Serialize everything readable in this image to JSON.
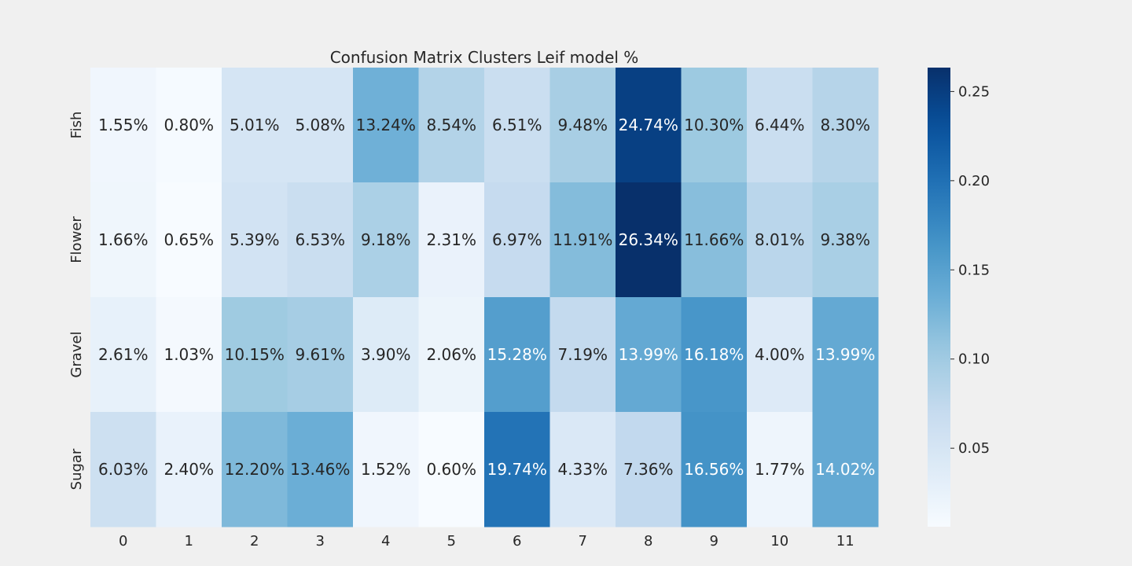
{
  "chart_data": {
    "type": "heatmap",
    "title": "Confusion Matrix Clusters Leif model %",
    "xlabel": "",
    "ylabel": "",
    "x_categories": [
      "0",
      "1",
      "2",
      "3",
      "4",
      "5",
      "6",
      "7",
      "8",
      "9",
      "10",
      "11"
    ],
    "y_categories": [
      "Fish",
      "Flower",
      "Gravel",
      "Sugar"
    ],
    "values": [
      [
        0.0155,
        0.008,
        0.0501,
        0.0508,
        0.1324,
        0.0854,
        0.0651,
        0.0948,
        0.2474,
        0.103,
        0.0644,
        0.083
      ],
      [
        0.0166,
        0.0065,
        0.0539,
        0.0653,
        0.0918,
        0.0231,
        0.0697,
        0.1191,
        0.2634,
        0.1166,
        0.0801,
        0.0938
      ],
      [
        0.0261,
        0.0103,
        0.1015,
        0.0961,
        0.039,
        0.0206,
        0.1528,
        0.0719,
        0.1399,
        0.1618,
        0.04,
        0.1399
      ],
      [
        0.0603,
        0.024,
        0.122,
        0.1346,
        0.0152,
        0.006,
        0.1974,
        0.0433,
        0.0736,
        0.1656,
        0.0177,
        0.1402
      ]
    ],
    "annotations": [
      [
        "1.55%",
        "0.80%",
        "5.01%",
        "5.08%",
        "13.24%",
        "8.54%",
        "6.51%",
        "9.48%",
        "24.74%",
        "10.30%",
        "6.44%",
        "8.30%"
      ],
      [
        "1.66%",
        "0.65%",
        "5.39%",
        "6.53%",
        "9.18%",
        "2.31%",
        "6.97%",
        "11.91%",
        "26.34%",
        "11.66%",
        "8.01%",
        "9.38%"
      ],
      [
        "2.61%",
        "1.03%",
        "10.15%",
        "9.61%",
        "3.90%",
        "2.06%",
        "15.28%",
        "7.19%",
        "13.99%",
        "16.18%",
        "4.00%",
        "13.99%"
      ],
      [
        "6.03%",
        "2.40%",
        "12.20%",
        "13.46%",
        "1.52%",
        "0.60%",
        "19.74%",
        "4.33%",
        "7.36%",
        "16.56%",
        "1.77%",
        "14.02%"
      ]
    ],
    "colormap": "Blues",
    "colorbar": {
      "min": 0.006,
      "max": 0.2634,
      "ticks": [
        0.05,
        0.1,
        0.15,
        0.2,
        0.25
      ],
      "tick_labels": [
        "0.05",
        "0.10",
        "0.15",
        "0.20",
        "0.25"
      ]
    },
    "text_colors": {
      "dark": "#262626",
      "light": "#ffffff"
    },
    "background": "#f0f0f0"
  }
}
